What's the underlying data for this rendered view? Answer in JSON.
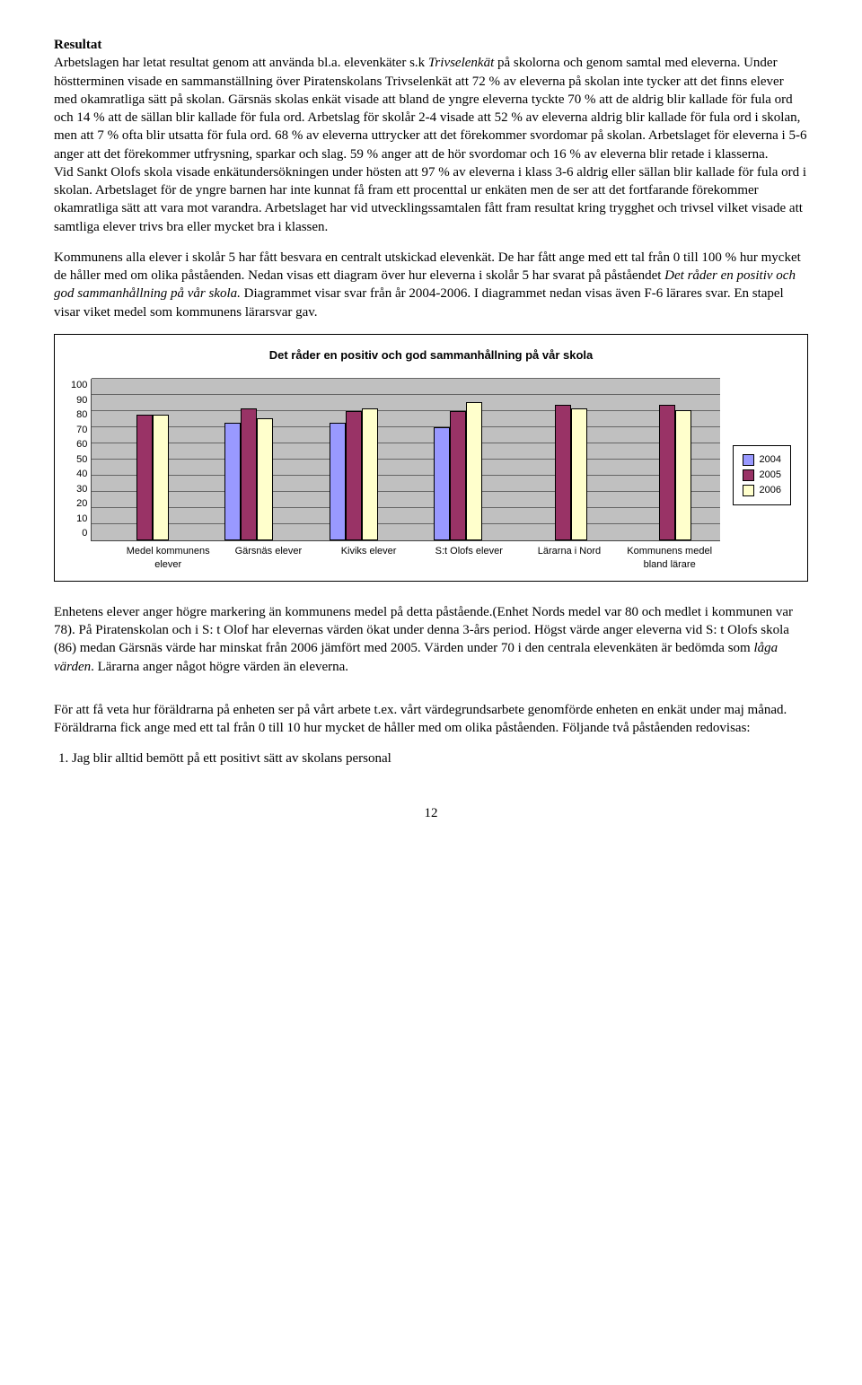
{
  "section_title": "Resultat",
  "para1_pre": "Arbetslagen har letat resultat genom att använda bl.a. elevenkäter s.k ",
  "para1_italic": "Trivselenkät",
  "para1_post": " på skolorna och genom samtal med eleverna.",
  "para2": "Under höstterminen visade en sammanställning över Piratenskolans Trivselenkät att 72 % av eleverna på skolan inte tycker att det finns elever med okamratliga sätt på skolan. Gärsnäs skolas enkät visade att bland de yngre eleverna tyckte 70 % att de aldrig blir kallade för fula ord och 14 % att de sällan blir kallade för fula ord. Arbetslag för skolår 2-4 visade att 52 % av eleverna aldrig blir kallade för fula ord i skolan, men att 7 % ofta blir utsatta för fula ord. 68 % av eleverna uttrycker att det förekommer svordomar på skolan. Arbetslaget för eleverna i 5-6 anger att det förekommer utfrysning, sparkar och slag. 59 % anger att de hör svordomar och 16 % av eleverna blir retade i klasserna.",
  "para3": "Vid Sankt Olofs skola visade enkätundersökningen under hösten att 97 % av eleverna i klass 3-6 aldrig eller sällan blir kallade för fula ord i skolan. Arbetslaget för de yngre barnen har inte kunnat få fram ett procenttal ur enkäten men de ser att det fortfarande förekommer okamratliga sätt att vara mot varandra. Arbetslaget har vid utvecklingssamtalen fått fram resultat kring trygghet och trivsel vilket visade att samtliga elever trivs bra eller mycket bra i klassen.",
  "para4_pre": "Kommunens alla elever i skolår 5 har fått besvara en centralt utskickad elevenkät. De har fått ange med ett tal från 0 till 100 % hur mycket de håller med om olika påståenden. Nedan visas ett diagram över hur eleverna i skolår 5 har svarat på påståendet ",
  "para4_italic": "Det råder en positiv och god sammanhållning på vår skola.",
  "para4_post": " Diagrammet visar svar från år 2004-2006. I diagrammet nedan visas även F-6 lärares svar. En stapel visar viket medel som kommunens lärarsvar gav.",
  "chart": {
    "title": "Det råder en positiv och god sammanhållning på vår skola",
    "ymax": 100,
    "ytick_step": 10,
    "background_color": "#c0c0c0",
    "grid_color": "#666666",
    "series": [
      {
        "label": "2004",
        "color": "#9999ff"
      },
      {
        "label": "2005",
        "color": "#993366"
      },
      {
        "label": "2006",
        "color": "#ffffcc"
      }
    ],
    "categories": [
      {
        "label": "Medel kommunens elever",
        "values": [
          null,
          78,
          78
        ]
      },
      {
        "label": "Gärsnäs elever",
        "values": [
          73,
          82,
          76
        ]
      },
      {
        "label": "Kiviks elever",
        "values": [
          73,
          80,
          82
        ]
      },
      {
        "label": "S:t Olofs elever",
        "values": [
          70,
          80,
          86
        ]
      },
      {
        "label": "Lärarna i Nord",
        "values": [
          null,
          84,
          82
        ]
      },
      {
        "label": "Kommunens medel bland lärare",
        "values": [
          null,
          84,
          81
        ]
      }
    ]
  },
  "para5_pre": "Enhetens elever anger högre markering än kommunens medel på detta påstående.(Enhet Nords medel var 80 och medlet i kommunen var 78). På Piratenskolan och i S: t Olof har elevernas värden ökat under denna 3-års period. Högst värde anger eleverna vid S: t Olofs skola (86) medan Gärsnäs värde har minskat från 2006 jämfört med 2005. Värden under 70 i den centrala elevenkäten är bedömda som ",
  "para5_italic": "låga värden",
  "para5_post": ". Lärarna anger något högre värden än eleverna.",
  "para6": "För att få veta hur föräldrarna på enheten ser på vårt arbete t.ex. vårt värdegrundsarbete genomförde enheten en enkät under maj månad. Föräldrarna fick ange med ett tal från 0 till 10 hur mycket de håller med om olika påståenden. Följande två påståenden redovisas:",
  "list_item_1": "Jag blir alltid bemött på ett positivt sätt av skolans personal",
  "page_number": "12"
}
